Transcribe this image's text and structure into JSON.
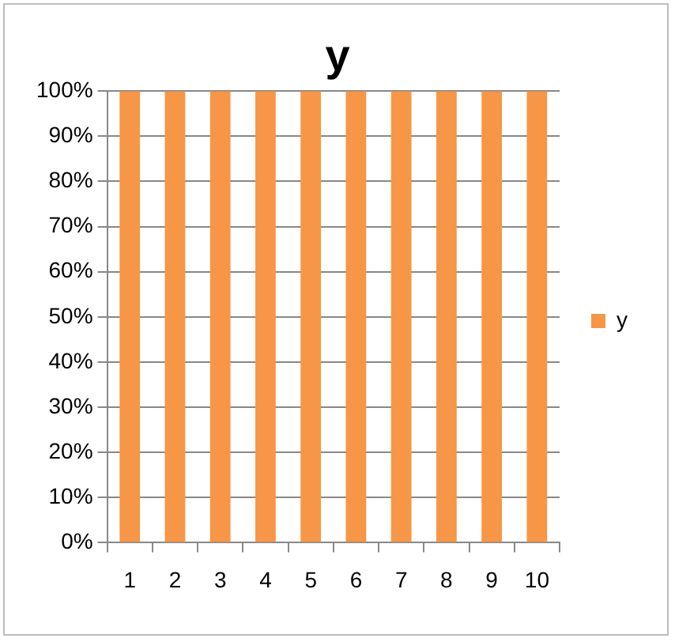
{
  "chart_data": {
    "type": "bar",
    "title": "y",
    "categories": [
      "1",
      "2",
      "3",
      "4",
      "5",
      "6",
      "7",
      "8",
      "9",
      "10"
    ],
    "series": [
      {
        "name": "y",
        "color": "#f79646",
        "values": [
          100,
          100,
          100,
          100,
          100,
          100,
          100,
          100,
          100,
          100
        ]
      }
    ],
    "ylim": [
      0,
      100
    ],
    "yticks": [
      {
        "value": 0,
        "label": "0%"
      },
      {
        "value": 10,
        "label": "10%"
      },
      {
        "value": 20,
        "label": "20%"
      },
      {
        "value": 30,
        "label": "30%"
      },
      {
        "value": 40,
        "label": "40%"
      },
      {
        "value": 50,
        "label": "50%"
      },
      {
        "value": 60,
        "label": "60%"
      },
      {
        "value": 70,
        "label": "70%"
      },
      {
        "value": 80,
        "label": "80%"
      },
      {
        "value": 90,
        "label": "90%"
      },
      {
        "value": 100,
        "label": "100%"
      }
    ],
    "grid": "y",
    "legend": "right"
  }
}
